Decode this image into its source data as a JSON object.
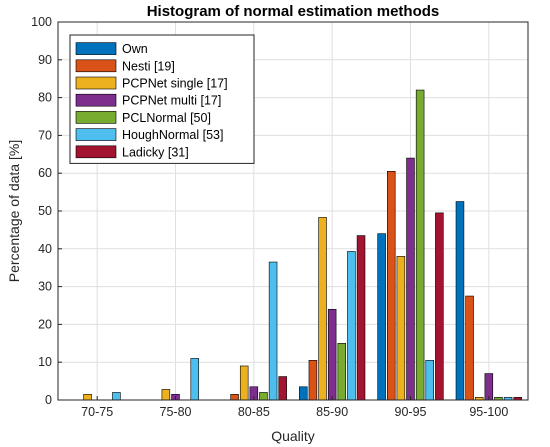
{
  "chart_data": {
    "type": "bar",
    "title": "Histogram of normal estimation methods",
    "xlabel": "Quality",
    "ylabel": "Percentage of data [%]",
    "ylim": [
      0,
      100
    ],
    "yticks": [
      0,
      10,
      20,
      30,
      40,
      50,
      60,
      70,
      80,
      90,
      100
    ],
    "categories": [
      "70-75",
      "75-80",
      "80-85",
      "85-90",
      "90-95",
      "95-100"
    ],
    "grid": true,
    "legend_position": "top-left",
    "series": [
      {
        "name": "Own",
        "color": "#0072BD",
        "values": [
          0,
          0,
          0,
          3.5,
          44,
          52.5
        ]
      },
      {
        "name": "Nesti [19]",
        "color": "#D95319",
        "values": [
          0,
          0,
          1.5,
          10.5,
          60.5,
          27.5
        ]
      },
      {
        "name": "PCPNet single [17]",
        "color": "#EDB120",
        "values": [
          1.5,
          2.8,
          9,
          48.3,
          38,
          0.7
        ]
      },
      {
        "name": "PCPNet multi [17]",
        "color": "#7E2F8E",
        "values": [
          0,
          1.5,
          3.5,
          24,
          64,
          7
        ]
      },
      {
        "name": "PCLNormal [50]",
        "color": "#77AC30",
        "values": [
          0,
          0,
          2,
          15,
          82,
          0.7
        ]
      },
      {
        "name": "HoughNormal [53]",
        "color": "#4DBEEE",
        "values": [
          2,
          11,
          36.5,
          39.3,
          10.5,
          0.7
        ]
      },
      {
        "name": "Ladicky [31]",
        "color": "#A2142F",
        "values": [
          0,
          0,
          6.2,
          43.5,
          49.5,
          0.7
        ]
      }
    ]
  }
}
